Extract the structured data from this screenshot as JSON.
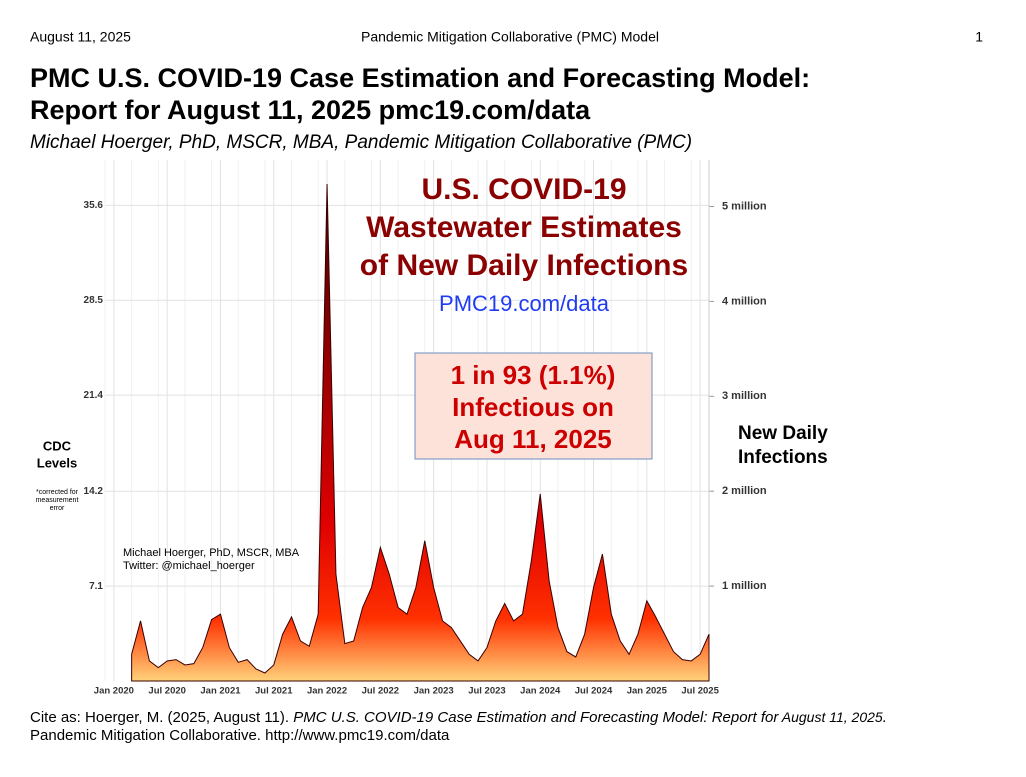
{
  "header": {
    "date": "August 11, 2025",
    "center": "Pandemic Mitigation Collaborative (PMC) Model",
    "page": "1"
  },
  "title": {
    "lines": [
      "PMC U.S. COVID-19 Case Estimation and Forecasting Model:",
      "Report for August 11, 2025 pmc19.com/data"
    ],
    "author": "Michael Hoerger, PhD, MSCR, MBA, Pandemic Mitigation Collaborative (PMC)"
  },
  "chart_data": {
    "type": "area",
    "title_lines": [
      "U.S. COVID-19",
      "Wastewater Estimates",
      "of New Daily Infections"
    ],
    "subtitle": "PMC19.com/data",
    "callout": [
      "1 in 93 (1.1%)",
      "Infectious on",
      "Aug 11, 2025"
    ],
    "ylabel": [
      "CDC",
      "Levels"
    ],
    "ylabel_note": [
      "*corrected for",
      "measurement",
      "error"
    ],
    "y2label": [
      "New Daily",
      "Infections"
    ],
    "watermark": [
      "Michael Hoerger, PhD, MSCR, MBA",
      "Twitter: @michael_hoerger"
    ],
    "grid": true,
    "xlim": [
      "2019-12",
      "2025-08"
    ],
    "xticks": [
      {
        "value": "2020-01",
        "label": "Jan 2020"
      },
      {
        "value": "2020-07",
        "label": "Jul 2020"
      },
      {
        "value": "2021-01",
        "label": "Jan 2021"
      },
      {
        "value": "2021-07",
        "label": "Jul 2021"
      },
      {
        "value": "2022-01",
        "label": "Jan 2022"
      },
      {
        "value": "2022-07",
        "label": "Jul 2022"
      },
      {
        "value": "2023-01",
        "label": "Jan 2023"
      },
      {
        "value": "2023-07",
        "label": "Jul 2023"
      },
      {
        "value": "2024-01",
        "label": "Jan 2024"
      },
      {
        "value": "2024-07",
        "label": "Jul 2024"
      },
      {
        "value": "2025-01",
        "label": "Jan 2025"
      },
      {
        "value": "2025-07",
        "label": "Jul 2025"
      }
    ],
    "ylim": [
      0,
      39
    ],
    "yticks": [
      7.1,
      14.2,
      21.4,
      28.5,
      35.6
    ],
    "y2lim": [
      0,
      5490000
    ],
    "y2ticks": [
      {
        "value": 1000000,
        "label": "1 million"
      },
      {
        "value": 2000000,
        "label": "2 million"
      },
      {
        "value": 3000000,
        "label": "3 million"
      },
      {
        "value": 4000000,
        "label": "4 million"
      },
      {
        "value": 5000000,
        "label": "5 million"
      }
    ],
    "colors": [
      "#3a0000",
      "#e00000",
      "#ff3000",
      "#ffd27a"
    ],
    "x": [
      "2020-03",
      "2020-04",
      "2020-05",
      "2020-06",
      "2020-07",
      "2020-08",
      "2020-09",
      "2020-10",
      "2020-11",
      "2020-12",
      "2021-01",
      "2021-02",
      "2021-03",
      "2021-04",
      "2021-05",
      "2021-06",
      "2021-07",
      "2021-08",
      "2021-09",
      "2021-10",
      "2021-11",
      "2021-12",
      "2022-01",
      "2022-02",
      "2022-03",
      "2022-04",
      "2022-05",
      "2022-06",
      "2022-07",
      "2022-08",
      "2022-09",
      "2022-10",
      "2022-11",
      "2022-12",
      "2023-01",
      "2023-02",
      "2023-03",
      "2023-04",
      "2023-05",
      "2023-06",
      "2023-07",
      "2023-08",
      "2023-09",
      "2023-10",
      "2023-11",
      "2023-12",
      "2024-01",
      "2024-02",
      "2024-03",
      "2024-04",
      "2024-05",
      "2024-06",
      "2024-07",
      "2024-08",
      "2024-09",
      "2024-10",
      "2024-11",
      "2024-12",
      "2025-01",
      "2025-02",
      "2025-03",
      "2025-04",
      "2025-05",
      "2025-06",
      "2025-07",
      "2025-08"
    ],
    "values": [
      2.0,
      4.5,
      1.5,
      1.0,
      1.5,
      1.6,
      1.2,
      1.3,
      2.5,
      4.6,
      5.0,
      2.5,
      1.4,
      1.6,
      0.9,
      0.6,
      1.2,
      3.5,
      4.8,
      3.0,
      2.6,
      5.0,
      37.2,
      8.0,
      2.8,
      3.0,
      5.5,
      7.0,
      10.0,
      8.0,
      5.5,
      5.0,
      7.0,
      10.5,
      7.0,
      4.5,
      4.0,
      3.0,
      2.0,
      1.5,
      2.5,
      4.5,
      5.8,
      4.5,
      5.0,
      9.0,
      14.0,
      7.5,
      4.0,
      2.2,
      1.8,
      3.5,
      7.0,
      9.5,
      5.0,
      3.0,
      2.0,
      3.5,
      6.0,
      4.8,
      3.5,
      2.2,
      1.6,
      1.5,
      2.0,
      3.5
    ]
  },
  "citation": {
    "line1": [
      "Cite as: Hoerger, M. (2025, August 11). ",
      "PMC U.S. COVID-19 Case Estimation and Forecasting Model: Report for",
      " August 11, 2025",
      "."
    ],
    "line2": "Pandemic Mitigation Collaborative. http://www.pmc19.com/data"
  }
}
